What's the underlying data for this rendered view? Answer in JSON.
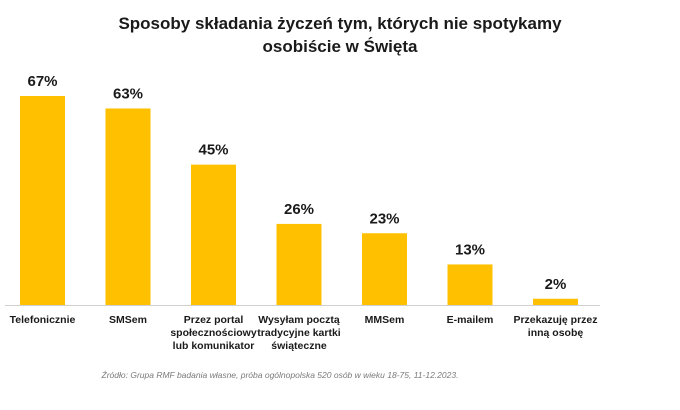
{
  "chart_data": {
    "type": "bar",
    "title": "Sposoby składania  życzeń tym, których nie spotykamy\nosobiście w Święta",
    "categories": [
      [
        "Telefonicznie"
      ],
      [
        "SMSem"
      ],
      [
        "Przez portal",
        "społecznościowy",
        "lub komunikator"
      ],
      [
        "Wysyłam pocztą",
        "tradycyjne kartki",
        "świąteczne"
      ],
      [
        "MMSem"
      ],
      [
        "E-mailem"
      ],
      [
        "Przekazuję przez",
        "inną osobę"
      ]
    ],
    "values": [
      67,
      63,
      45,
      26,
      23,
      13,
      2
    ],
    "value_labels": [
      "67%",
      "63%",
      "45%",
      "26%",
      "23%",
      "13%",
      "2%"
    ],
    "ylim": [
      0,
      67
    ],
    "xlabel": "",
    "ylabel": "",
    "grid": false,
    "legend": "none",
    "bar_color": "#FFC000"
  },
  "source": "Źródło: Grupa RMF badania własne, próba ogólnopolska 520 osób w wieku 18-75, 11-12.2023."
}
